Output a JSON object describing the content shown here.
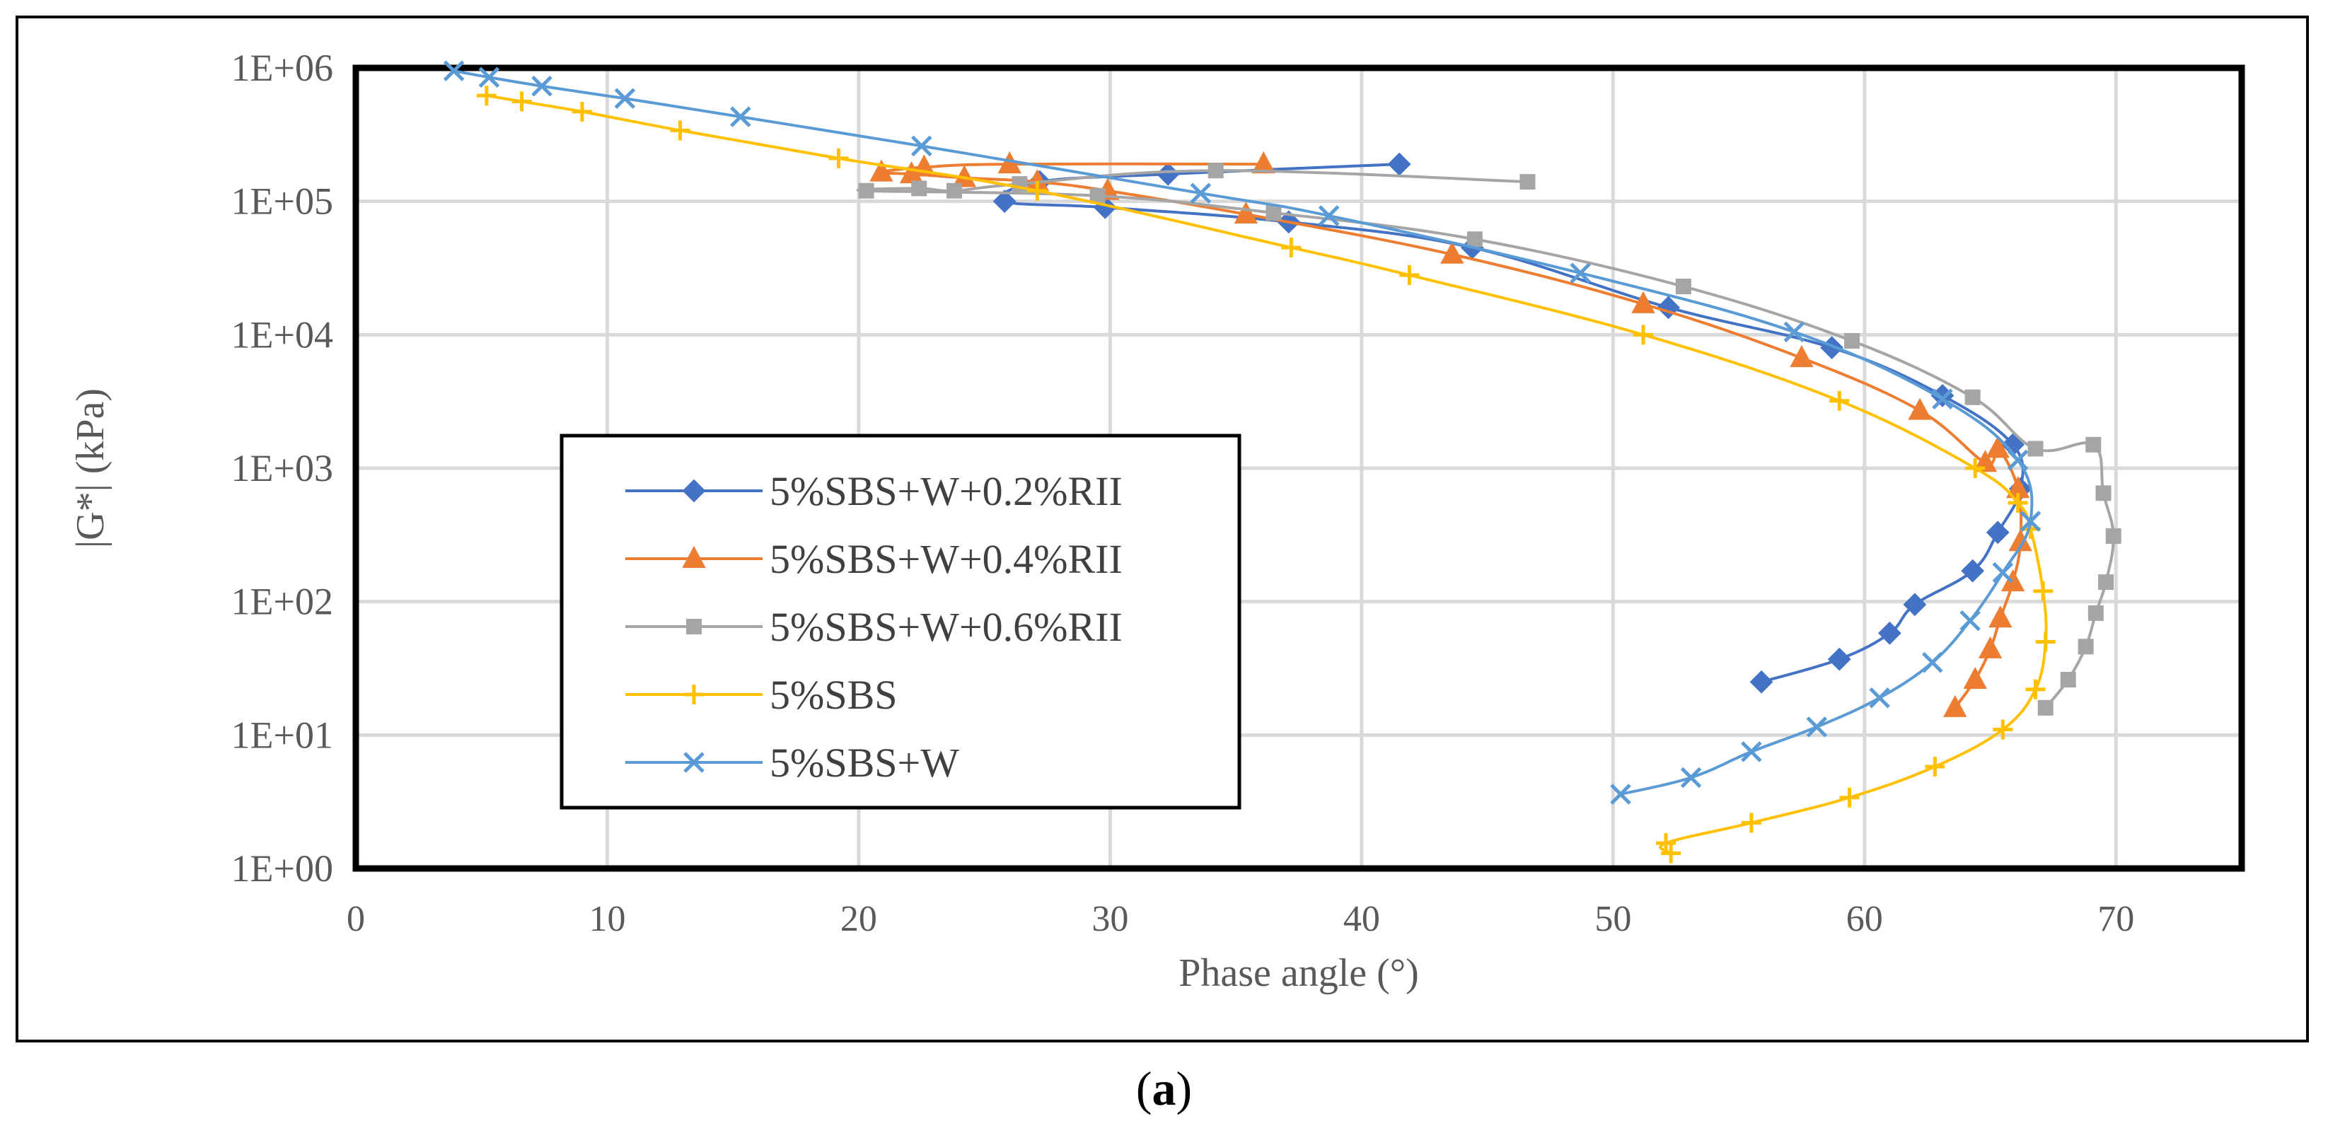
{
  "caption": {
    "open": "(",
    "label": "a",
    "close": ")"
  },
  "chart_data": {
    "type": "scatter",
    "title": "",
    "xlabel": "Phase angle (°)",
    "ylabel": "|G*| (kPa)",
    "xlim": [
      0,
      75
    ],
    "ylim": [
      1,
      1000000
    ],
    "yscale": "log",
    "grid": true,
    "legend_position": "left-middle",
    "x_ticks": [
      "0",
      "10",
      "20",
      "30",
      "40",
      "50",
      "60",
      "70"
    ],
    "y_ticks": [
      "1E+00",
      "1E+01",
      "1E+02",
      "1E+03",
      "1E+04",
      "1E+05",
      "1E+06"
    ],
    "series": [
      {
        "name": "5%SBS+W+0.2%RII",
        "color": "#4472C4",
        "marker": "diamond",
        "x": [
          41.5,
          32.3,
          27.2,
          25.8,
          29.8,
          37.1,
          44.4,
          52.2,
          58.7,
          63.1,
          65.9,
          66.2,
          65.3,
          64.3,
          62.0,
          61.0,
          59.0,
          55.9
        ],
        "y": [
          190000,
          160000,
          140000,
          100000,
          90000,
          70000,
          45000,
          16000,
          8000,
          3500,
          1500,
          700,
          330,
          170,
          95,
          58,
          37,
          25
        ]
      },
      {
        "name": "5%SBS+W+0.4%RII",
        "color": "#ED7D31",
        "marker": "triangle",
        "x": [
          36.1,
          26.0,
          22.6,
          20.9,
          22.1,
          24.2,
          27.1,
          29.9,
          35.4,
          43.6,
          51.2,
          57.5,
          62.2,
          64.8,
          65.3,
          66.1,
          66.2,
          65.9,
          65.4,
          65.0,
          64.4,
          63.6
        ],
        "y": [
          190000,
          190000,
          180000,
          165000,
          160000,
          150000,
          140000,
          120000,
          80000,
          40000,
          17000,
          6700,
          2700,
          1100,
          1400,
          700,
          280,
          140,
          75,
          44,
          26,
          16
        ]
      },
      {
        "name": "5%SBS+W+0.6%RII",
        "color": "#A5A5A5",
        "marker": "square",
        "x": [
          46.6,
          34.2,
          26.4,
          23.8,
          22.4,
          20.3,
          29.5,
          36.5,
          44.5,
          52.8,
          59.5,
          64.3,
          66.8,
          69.1,
          69.5,
          69.9,
          69.6,
          69.2,
          68.8,
          68.1,
          67.2
        ],
        "y": [
          140000,
          170000,
          135000,
          120000,
          125000,
          120000,
          110000,
          82000,
          52000,
          23000,
          9000,
          3400,
          1400,
          1500,
          650,
          310,
          140,
          82,
          46,
          26,
          16
        ]
      },
      {
        "name": "5%SBS",
        "color": "#FFC000",
        "marker": "plus",
        "x": [
          5.2,
          6.6,
          9.0,
          12.9,
          19.2,
          27.1,
          37.2,
          41.9,
          51.2,
          59.0,
          64.4,
          66.1,
          66.6,
          67.1,
          67.2,
          66.8,
          65.5,
          62.8,
          59.4,
          55.5,
          52.1,
          52.3
        ],
        "y": [
          620000,
          560000,
          470000,
          340000,
          210000,
          120000,
          45000,
          28000,
          10000,
          3200,
          1000,
          550,
          350,
          120,
          50,
          22,
          11,
          5.8,
          3.4,
          2.2,
          1.55,
          1.3
        ]
      },
      {
        "name": "5%SBS+W",
        "color": "#5B9BD5",
        "marker": "x",
        "x": [
          3.9,
          5.3,
          7.4,
          10.7,
          15.3,
          22.5,
          33.6,
          38.7,
          48.7,
          57.2,
          63.1,
          66.1,
          66.6,
          65.5,
          64.2,
          62.7,
          60.6,
          58.1,
          55.5,
          53.1,
          50.3
        ],
        "y": [
          950000,
          850000,
          730000,
          590000,
          430000,
          260000,
          115000,
          78000,
          29000,
          10500,
          3300,
          1150,
          400,
          165,
          72,
          35,
          19,
          11.5,
          7.5,
          4.8,
          3.6
        ]
      }
    ]
  }
}
